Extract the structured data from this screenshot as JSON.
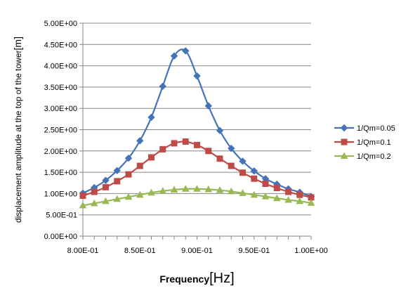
{
  "chart_data": {
    "type": "line",
    "xlabel": "Frequency",
    "xlabel_unit": "[Hz]",
    "ylabel": "displacement amplitude at the top of the tower",
    "ylabel_unit": "[m]",
    "xlim": [
      0.8,
      1.0
    ],
    "ylim": [
      0,
      5
    ],
    "x_ticks": [
      0.8,
      0.85,
      0.9,
      0.95,
      1.0
    ],
    "x_tick_labels": [
      "8.00E-01",
      "8.50E-01",
      "9.00E-01",
      "9.50E-01",
      "1.00E+00"
    ],
    "y_ticks": [
      0,
      0.5,
      1,
      1.5,
      2,
      2.5,
      3,
      3.5,
      4,
      4.5,
      5
    ],
    "y_tick_labels": [
      "0.00E+00",
      "5.00E-01",
      "1.00E+00",
      "1.50E+00",
      "2.00E+00",
      "2.50E+00",
      "3.00E+00",
      "3.50E+00",
      "4.00E+00",
      "4.50E+00",
      "5.00E+00"
    ],
    "grid": "horizontal major gridlines",
    "legend_position": "right",
    "x": [
      0.8,
      0.81,
      0.82,
      0.83,
      0.84,
      0.85,
      0.86,
      0.87,
      0.88,
      0.89,
      0.9,
      0.91,
      0.92,
      0.93,
      0.94,
      0.95,
      0.96,
      0.97,
      0.98,
      0.99,
      1.0
    ],
    "series": [
      {
        "name": "1/Qm=0.05",
        "color": "#4573B8",
        "marker": "diamond",
        "values": [
          1.01,
          1.14,
          1.31,
          1.54,
          1.83,
          2.24,
          2.79,
          3.52,
          4.23,
          4.35,
          3.76,
          3.06,
          2.48,
          2.06,
          1.76,
          1.53,
          1.35,
          1.22,
          1.11,
          1.03,
          0.93
        ]
      },
      {
        "name": "1/Qm=0.1",
        "color": "#BE4B48",
        "marker": "square",
        "values": [
          0.95,
          1.04,
          1.15,
          1.29,
          1.45,
          1.65,
          1.85,
          2.04,
          2.18,
          2.22,
          2.14,
          2.0,
          1.82,
          1.65,
          1.49,
          1.35,
          1.23,
          1.13,
          1.04,
          0.97,
          0.91
        ]
      },
      {
        "name": "1/Qm=0.2",
        "color": "#98B954",
        "marker": "triangle",
        "values": [
          0.72,
          0.77,
          0.82,
          0.87,
          0.92,
          0.97,
          1.02,
          1.06,
          1.09,
          1.11,
          1.11,
          1.1,
          1.08,
          1.05,
          1.01,
          0.97,
          0.93,
          0.89,
          0.85,
          0.82,
          0.78
        ]
      }
    ]
  }
}
